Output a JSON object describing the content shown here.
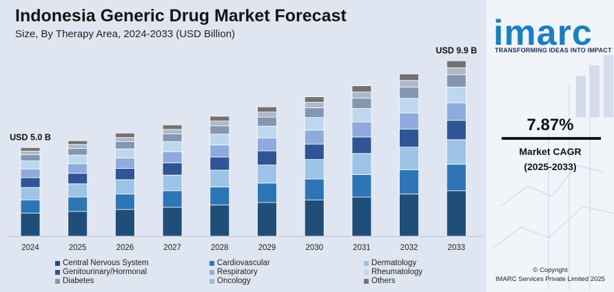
{
  "header": {
    "title": "Indonesia Generic Drug Market Forecast",
    "subtitle": "Size, By Therapy Area, 2024-2033 (USD Billion)"
  },
  "chart_data": {
    "type": "bar",
    "stacked": true,
    "title": "Indonesia Generic Drug Market Forecast",
    "subtitle": "Size, By Therapy Area, 2024-2033 (USD Billion)",
    "categories": [
      "2024",
      "2025",
      "2026",
      "2027",
      "2028",
      "2029",
      "2030",
      "2031",
      "2032",
      "2033"
    ],
    "totals": [
      5.0,
      5.39,
      5.82,
      6.28,
      6.77,
      7.3,
      7.87,
      8.49,
      9.16,
      9.9
    ],
    "annotations": [
      {
        "category": "2024",
        "text": "USD 5.0 B"
      },
      {
        "category": "2033",
        "text": "USD 9.9 B"
      }
    ],
    "series": [
      {
        "name": "Central Nervous System",
        "color": "#1f4e79",
        "values": [
          1.3,
          1.4,
          1.51,
          1.63,
          1.76,
          1.9,
          2.05,
          2.21,
          2.38,
          2.57
        ]
      },
      {
        "name": "Cardiovascular",
        "color": "#2e75b6",
        "values": [
          0.75,
          0.81,
          0.87,
          0.94,
          1.02,
          1.1,
          1.18,
          1.27,
          1.37,
          1.49
        ]
      },
      {
        "name": "Dermatology",
        "color": "#9dc3e6",
        "values": [
          0.7,
          0.75,
          0.81,
          0.88,
          0.95,
          1.02,
          1.1,
          1.19,
          1.28,
          1.39
        ]
      },
      {
        "name": "Genitourinary/Hormonal",
        "color": "#2f5597",
        "values": [
          0.55,
          0.59,
          0.64,
          0.69,
          0.74,
          0.8,
          0.87,
          0.93,
          1.01,
          1.09
        ]
      },
      {
        "name": "Respiratory",
        "color": "#8faadc",
        "values": [
          0.5,
          0.54,
          0.58,
          0.63,
          0.68,
          0.73,
          0.79,
          0.85,
          0.92,
          0.99
        ]
      },
      {
        "name": "Rheumatology",
        "color": "#bdd7ee",
        "values": [
          0.45,
          0.49,
          0.52,
          0.57,
          0.61,
          0.66,
          0.71,
          0.76,
          0.82,
          0.89
        ]
      },
      {
        "name": "Diabetes",
        "color": "#8497b0",
        "values": [
          0.35,
          0.38,
          0.41,
          0.44,
          0.47,
          0.51,
          0.55,
          0.59,
          0.64,
          0.69
        ]
      },
      {
        "name": "Oncology",
        "color": "#adb9ca",
        "values": [
          0.2,
          0.22,
          0.23,
          0.25,
          0.27,
          0.29,
          0.31,
          0.34,
          0.37,
          0.4
        ]
      },
      {
        "name": "Others",
        "color": "#767171",
        "values": [
          0.2,
          0.21,
          0.25,
          0.25,
          0.27,
          0.29,
          0.31,
          0.35,
          0.37,
          0.39
        ]
      }
    ],
    "xlabel": "",
    "ylabel": "",
    "ylim": [
      0,
      11
    ],
    "y_axis_visible": false,
    "grid": false,
    "legend_position": "bottom"
  },
  "sidebar": {
    "logo_text": "imarc",
    "logo_tagline": "TRANSFORMING IDEAS INTO IMPACT",
    "cagr_value": "7.87%",
    "cagr_label": "Market CAGR",
    "cagr_period": "(2025-2033)",
    "copyright_line1": "© Copyright",
    "copyright_line2": "IMARC Services Private Limited 2025",
    "brand_color": "#1a7fc1"
  }
}
